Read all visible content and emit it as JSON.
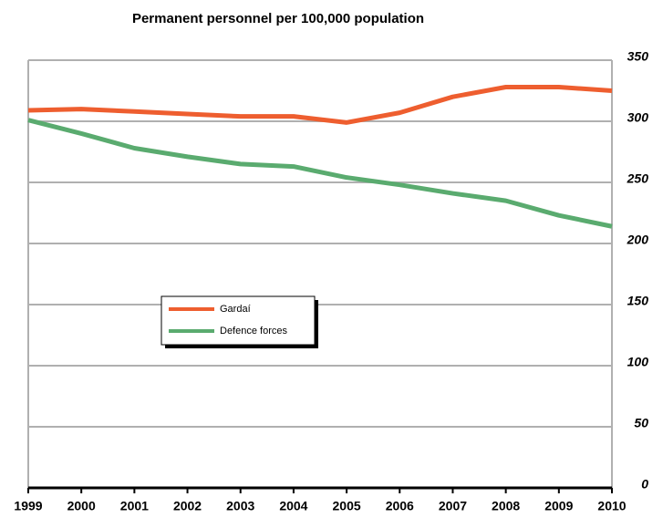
{
  "chart_data": {
    "type": "line",
    "title": "Permanent personnel per 100,000 population",
    "categories": [
      "1999",
      "2000",
      "2001",
      "2002",
      "2003",
      "2004",
      "2005",
      "2006",
      "2007",
      "2008",
      "2009",
      "2010"
    ],
    "series": [
      {
        "name": "Gardaí",
        "color": "#ee5e2f",
        "values": [
          309,
          310,
          308,
          306,
          304,
          304,
          299,
          307,
          320,
          328,
          328,
          325
        ]
      },
      {
        "name": "Defence forces",
        "color": "#5aab6f",
        "values": [
          301,
          290,
          278,
          271,
          265,
          263,
          254,
          248,
          241,
          235,
          223,
          214
        ]
      }
    ],
    "ylim": [
      0,
      350
    ],
    "yticks": [
      0,
      50,
      100,
      150,
      200,
      250,
      300,
      350
    ],
    "grid": true,
    "y_axis_side": "right",
    "legend": "center-left"
  }
}
